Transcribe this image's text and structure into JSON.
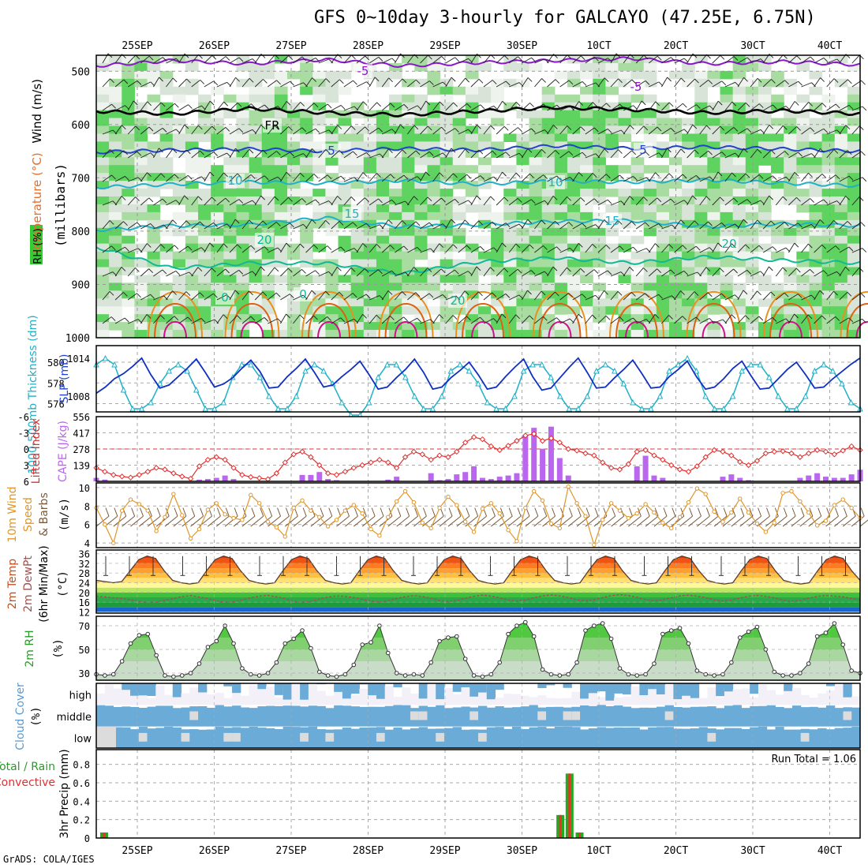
{
  "title": "GFS 0~10day 3-hourly for GALCAYO (47.25E, 6.75N)",
  "footer": "GrADS: COLA/IGES",
  "dates": [
    "25SEP",
    "26SEP",
    "27SEP",
    "28SEP",
    "29SEP",
    "30SEP",
    "1OCT",
    "2OCT",
    "3OCT",
    "4OCT"
  ],
  "date_labels_displayed": [
    "25SEP",
    "26SEP",
    "27SEP",
    "28SEP",
    "29SEP",
    "30SEP",
    "10CT",
    "20CT",
    "30CT",
    "40CT"
  ],
  "colors": {
    "rh_green": "#33cc33",
    "rh_light": "#d8e4d8",
    "purple": "#8a18c8",
    "blue": "#2244cc",
    "cyan": "#20b0c8",
    "teal": "#10b898",
    "orange": "#e89020",
    "red": "#e03030",
    "magenta": "#d0108a",
    "cape": "#bb66ee",
    "wind": "#e0962a",
    "cloud": "#6aabd8",
    "precip_green": "#22aa22",
    "precip_red": "#ee3322"
  },
  "chart_data": [
    {
      "panel": "upper-air",
      "type": "heatmap",
      "ylabel_parts": [
        "RH (%)",
        "Temperature (°C)",
        "Wind (m/s)"
      ],
      "ylabel_units": "(millibars)",
      "y_ticks": [
        500,
        600,
        700,
        800,
        900,
        1000
      ],
      "ylim": [
        1000,
        470
      ],
      "contour_labels": [
        "-5",
        "-5",
        "FR",
        "5",
        "5",
        "10",
        "10",
        "15",
        "15",
        "20",
        "20",
        "20",
        "0",
        "0"
      ],
      "isotherms": [
        {
          "name": "-5",
          "levels": [
            490,
            480,
            486,
            478,
            490,
            484,
            480,
            476,
            486,
            482,
            488
          ]
        },
        {
          "name": "FR",
          "levels": [
            575,
            580,
            570,
            578,
            582,
            575,
            568,
            572,
            578,
            574,
            580
          ]
        },
        {
          "name": "5",
          "levels": [
            652,
            648,
            646,
            650,
            645,
            648,
            640,
            645,
            642,
            646,
            650
          ]
        },
        {
          "name": "10",
          "levels": [
            718,
            712,
            708,
            710,
            705,
            712,
            706,
            708,
            704,
            710,
            715
          ]
        },
        {
          "name": "15",
          "levels": [
            798,
            790,
            788,
            775,
            792,
            788,
            782,
            780,
            792,
            786,
            790
          ]
        },
        {
          "name": "20",
          "levels": [
            830,
            870,
            860,
            860,
            880,
            858,
            850,
            860,
            848,
            855,
            860
          ]
        }
      ]
    },
    {
      "panel": "thickness-slp",
      "type": "line",
      "ylabel_left": "1000-500mb Thickness (dm)",
      "ylabel_right": "SLP (mb)",
      "left_ticks": [
        576,
        578,
        580
      ],
      "right_ticks": [
        1008,
        1014
      ],
      "left_ylim": [
        575.2,
        581.6
      ],
      "right_ylim": [
        1005.5,
        1016
      ],
      "series": [
        {
          "name": "SLP",
          "color": "#20b0c8",
          "values": [
            1013,
            1014,
            1013,
            1009,
            1006,
            1006,
            1007,
            1010,
            1012,
            1013,
            1012,
            1009,
            1006,
            1006,
            1007,
            1011,
            1013,
            1013,
            1011,
            1008,
            1006,
            1006,
            1008,
            1012,
            1013,
            1012,
            1010,
            1007,
            1005,
            1005,
            1007,
            1011,
            1013,
            1013,
            1011,
            1008,
            1006,
            1006,
            1008,
            1012,
            1013,
            1012,
            1010,
            1007,
            1006,
            1006,
            1008,
            1012,
            1013,
            1013,
            1011,
            1008,
            1006,
            1006,
            1008,
            1012,
            1013,
            1012,
            1010,
            1007,
            1006,
            1006,
            1008,
            1012,
            1013,
            1014,
            1012,
            1008,
            1006,
            1006,
            1008,
            1012,
            1013,
            1013,
            1011,
            1008,
            1006,
            1006,
            1008,
            1012,
            1013,
            1012,
            1010,
            1007,
            1006
          ]
        },
        {
          "name": "Thickness",
          "color": "#1030c0",
          "values": [
            577,
            577.6,
            578.4,
            578.9,
            579.6,
            580.4,
            578.8,
            577.5,
            577.8,
            578.6,
            579.4,
            580.3,
            579,
            577.6,
            577.9,
            578.5,
            579.4,
            580.2,
            579.1,
            577.5,
            577.6,
            578.6,
            579.4,
            580.3,
            579,
            577.6,
            577.8,
            578.6,
            579.3,
            580.1,
            578.8,
            577.4,
            577.6,
            578.5,
            579.3,
            580.3,
            579,
            577.4,
            577.6,
            578.5,
            579.2,
            580,
            578.8,
            577.4,
            577.6,
            578.6,
            579.5,
            580.3,
            578.6,
            577.3,
            577.5,
            578.5,
            579.5,
            580.4,
            579,
            577.5,
            577.6,
            578.5,
            579.3,
            580.2,
            578.9,
            577.5,
            577.6,
            578.6,
            579.3,
            580.1,
            578.6,
            577.4,
            577.6,
            578.4,
            579.4,
            580.1,
            578.7,
            577.4,
            577.5,
            578.4,
            579.3,
            580,
            578.8,
            577.5,
            577.6,
            578.4,
            579.1,
            579.8,
            580.4
          ]
        }
      ]
    },
    {
      "panel": "lifted-index-cape",
      "type": "bar",
      "ylabel_left": "Lifted Index",
      "ylabel_right": "CAPE (J/kg)",
      "left_ticks": [
        -6,
        -3,
        0,
        3,
        6
      ],
      "right_ticks": [
        139,
        278,
        417,
        556
      ],
      "series": [
        {
          "name": "CAPE",
          "color": "#bb66ee",
          "values": [
            30,
            15,
            0,
            0,
            0,
            0,
            0,
            0,
            0,
            0,
            0,
            0,
            15,
            20,
            30,
            50,
            20,
            0,
            0,
            0,
            0,
            0,
            0,
            0,
            55,
            55,
            80,
            20,
            10,
            0,
            0,
            0,
            0,
            0,
            15,
            40,
            0,
            0,
            0,
            70,
            10,
            20,
            60,
            80,
            130,
            30,
            20,
            40,
            50,
            70,
            400,
            460,
            280,
            470,
            200,
            50,
            0,
            0,
            0,
            0,
            0,
            0,
            0,
            130,
            220,
            50,
            30,
            0,
            0,
            0,
            0,
            0,
            0,
            40,
            60,
            30,
            10,
            0,
            0,
            0,
            0,
            0,
            30,
            50,
            70,
            40,
            30,
            30,
            60,
            100
          ]
        },
        {
          "name": "Lifted Index",
          "color": "#e03030",
          "values": [
            3.5,
            4.2,
            4.8,
            5.1,
            5.3,
            4.8,
            4.2,
            3.5,
            3.8,
            4.5,
            5.1,
            5.5,
            3.2,
            2,
            1.5,
            2,
            3.5,
            4.8,
            5.2,
            5.4,
            5.6,
            4.5,
            2.5,
            1,
            0.5,
            1.5,
            3,
            4.5,
            4.8,
            4.2,
            3.5,
            3,
            2.5,
            2,
            2.5,
            3.5,
            1.5,
            0.5,
            1,
            2,
            1.2,
            1.5,
            0.5,
            -1.2,
            -2.2,
            -1.8,
            -0.5,
            0.2,
            -0.6,
            -1.5,
            -2.5,
            -2.8,
            -1.5,
            -2,
            -1.2,
            0,
            0.3,
            0.8,
            1.2,
            2.5,
            3.5,
            3.8,
            2.8,
            0.5,
            0.2,
            1.2,
            2,
            3,
            3.8,
            4.2,
            3.2,
            1.5,
            0.2,
            0.5,
            1.2,
            2.4,
            3,
            2.2,
            0.8,
            0.5,
            0.4,
            0.8,
            1.5,
            0.8,
            0.2,
            0.5,
            1,
            0.3,
            -0.5,
            0.2
          ]
        }
      ]
    },
    {
      "panel": "10m-wind",
      "type": "line",
      "ylabel_parts": [
        "10m Wind",
        "Speed",
        "& Barbs"
      ],
      "ylabel_units": "(m/s)",
      "y_ticks": [
        4,
        6,
        8,
        10
      ],
      "ylim": [
        3.5,
        10.5
      ],
      "series": [
        {
          "name": "Speed",
          "color": "#e0962a",
          "values": [
            7.8,
            6,
            4,
            7.5,
            8.7,
            8.2,
            7.5,
            5.3,
            6.8,
            9.3,
            7,
            4.5,
            5.5,
            7.6,
            8.3,
            7.1,
            6.7,
            6.5,
            9.2,
            8.3,
            6.3,
            5.7,
            4.7,
            7.8,
            8.6,
            7.5,
            6.8,
            5.8,
            6.5,
            7.5,
            8.1,
            7.2,
            5.5,
            4.8,
            6.8,
            8.5,
            9.6,
            8.4,
            6.2,
            5.6,
            7.8,
            9,
            8.1,
            6.3,
            5.2,
            7.7,
            8.3,
            7.2,
            5.4,
            4.2,
            7.8,
            9.6,
            8.6,
            6.1,
            5.6,
            10.1,
            8.3,
            6.9,
            3.8,
            6.5,
            8.3,
            7.5,
            6.7,
            7.2,
            8.2,
            7.3,
            6.2,
            5.6,
            6.8,
            8.4,
            9.9,
            9.3,
            7.4,
            6.3,
            7.3,
            8.8,
            7.3,
            6.1,
            5.2,
            6.2,
            9.4,
            9.6,
            8.5,
            7.3,
            5.9,
            6.4,
            8.1,
            8.7,
            7.8,
            6.7
          ]
        }
      ]
    },
    {
      "panel": "2m-temp",
      "type": "area",
      "ylabel_parts": [
        "2m Temp",
        "2m DewPt",
        "(6hr Min/Max)"
      ],
      "ylabel_units": "(°C)",
      "y_ticks": [
        12,
        16,
        20,
        24,
        28,
        32,
        36
      ],
      "ylim": [
        11.5,
        37.5
      ],
      "series": [
        {
          "name": "2m Temp",
          "values": [
            25,
            24.5,
            24,
            24.5,
            29,
            33.5,
            35,
            34,
            29,
            25,
            24,
            23.5,
            24,
            29,
            33.5,
            35,
            34,
            29,
            25,
            24,
            23.5,
            24,
            29,
            33.5,
            35,
            34,
            29,
            25,
            24,
            23.5,
            24,
            29,
            33.5,
            35,
            34,
            29,
            25,
            24,
            23.5,
            24,
            29,
            33.5,
            35,
            34,
            29,
            25,
            24,
            23.5,
            24,
            29,
            33.5,
            35,
            34,
            29,
            25,
            24,
            23.5,
            24,
            29,
            33.5,
            35,
            34,
            29,
            25,
            24,
            23.5,
            24,
            29,
            33.5,
            35,
            34,
            29,
            25,
            24,
            23.5,
            24,
            29,
            33.5,
            35,
            34,
            29,
            25,
            24,
            23.5,
            24,
            29,
            33.5,
            35,
            34,
            29,
            25
          ]
        },
        {
          "name": "2m DewPt",
          "values": [
            18.5,
            18.2,
            17.8,
            17.5,
            17,
            16.3,
            15.8,
            16.1,
            16.8,
            17.5,
            18.3,
            18.7,
            18.1,
            17.5,
            16.5,
            16,
            16.2,
            17,
            17.8,
            18.5,
            18.8,
            18.2,
            17.4,
            16.3,
            15.9,
            16.4,
            17.3,
            18.1,
            18.6,
            18.4,
            17.9,
            17.2,
            16.4,
            16.1,
            16.6,
            17.5,
            18.3,
            18.7,
            18.3,
            17.6,
            16.7,
            16.3,
            16.7,
            17.6,
            18.4,
            18.9,
            18.5,
            17.8,
            16.9,
            16.5,
            16.9,
            17.8,
            18.6,
            19,
            18.6,
            17.9,
            17,
            16.6,
            17,
            17.9,
            18.7,
            19.1,
            18.7,
            18,
            17.1,
            16.6,
            17,
            17.8,
            18.6,
            18.9,
            18.5,
            17.9,
            17,
            16.5,
            16.9,
            17.7,
            18.5,
            18.8,
            18.4,
            17.8,
            16.9,
            16.4,
            16.8,
            17.6,
            18.4,
            18.7,
            18.5,
            18.2,
            17.5,
            17
          ]
        }
      ]
    },
    {
      "panel": "2m-rh",
      "type": "area",
      "ylabel": "2m RH",
      "ylabel_units": "(%)",
      "y_ticks": [
        30,
        50,
        70
      ],
      "ylim": [
        24,
        78
      ],
      "series": [
        {
          "name": "2m RH",
          "values": [
            29,
            28,
            29,
            40,
            55,
            62,
            63,
            45,
            28,
            27,
            28,
            30,
            38,
            52,
            57,
            70,
            55,
            34,
            29,
            28,
            30,
            39,
            55,
            59,
            66,
            51,
            31,
            28,
            27,
            29,
            37,
            54,
            56,
            70,
            47,
            30,
            28,
            29,
            28,
            39,
            57,
            60,
            61,
            42,
            28,
            27,
            29,
            39,
            63,
            70,
            73,
            61,
            33,
            29,
            28,
            29,
            39,
            66,
            70,
            72,
            59,
            34,
            29,
            28,
            29,
            38,
            63,
            66,
            68,
            55,
            32,
            29,
            28,
            29,
            39,
            60,
            65,
            69,
            50,
            31,
            28,
            28,
            30,
            38,
            61,
            64,
            72,
            54,
            32,
            30
          ]
        }
      ]
    },
    {
      "panel": "cloud-cover",
      "type": "heatmap",
      "ylabel": "Cloud Cover",
      "ylabel_units": "(%)",
      "row_labels": [
        "high",
        "middle",
        "low"
      ]
    },
    {
      "panel": "precip",
      "type": "bar",
      "ylabel_left_parts": [
        "Total / Rain",
        "Convective"
      ],
      "ylabel": "3hr Precip (mm)",
      "y_ticks": [
        0,
        0.2,
        0.4,
        0.6,
        0.8
      ],
      "ylim": [
        0,
        0.96
      ],
      "run_total_label": "Run Total = 1.06",
      "bars": [
        {
          "day_offset": 0.02,
          "total": 0.06
        },
        {
          "day_offset": 5.95,
          "total": 0.25
        },
        {
          "day_offset": 6.07,
          "total": 0.7
        },
        {
          "day_offset": 6.2,
          "total": 0.06
        }
      ]
    }
  ]
}
